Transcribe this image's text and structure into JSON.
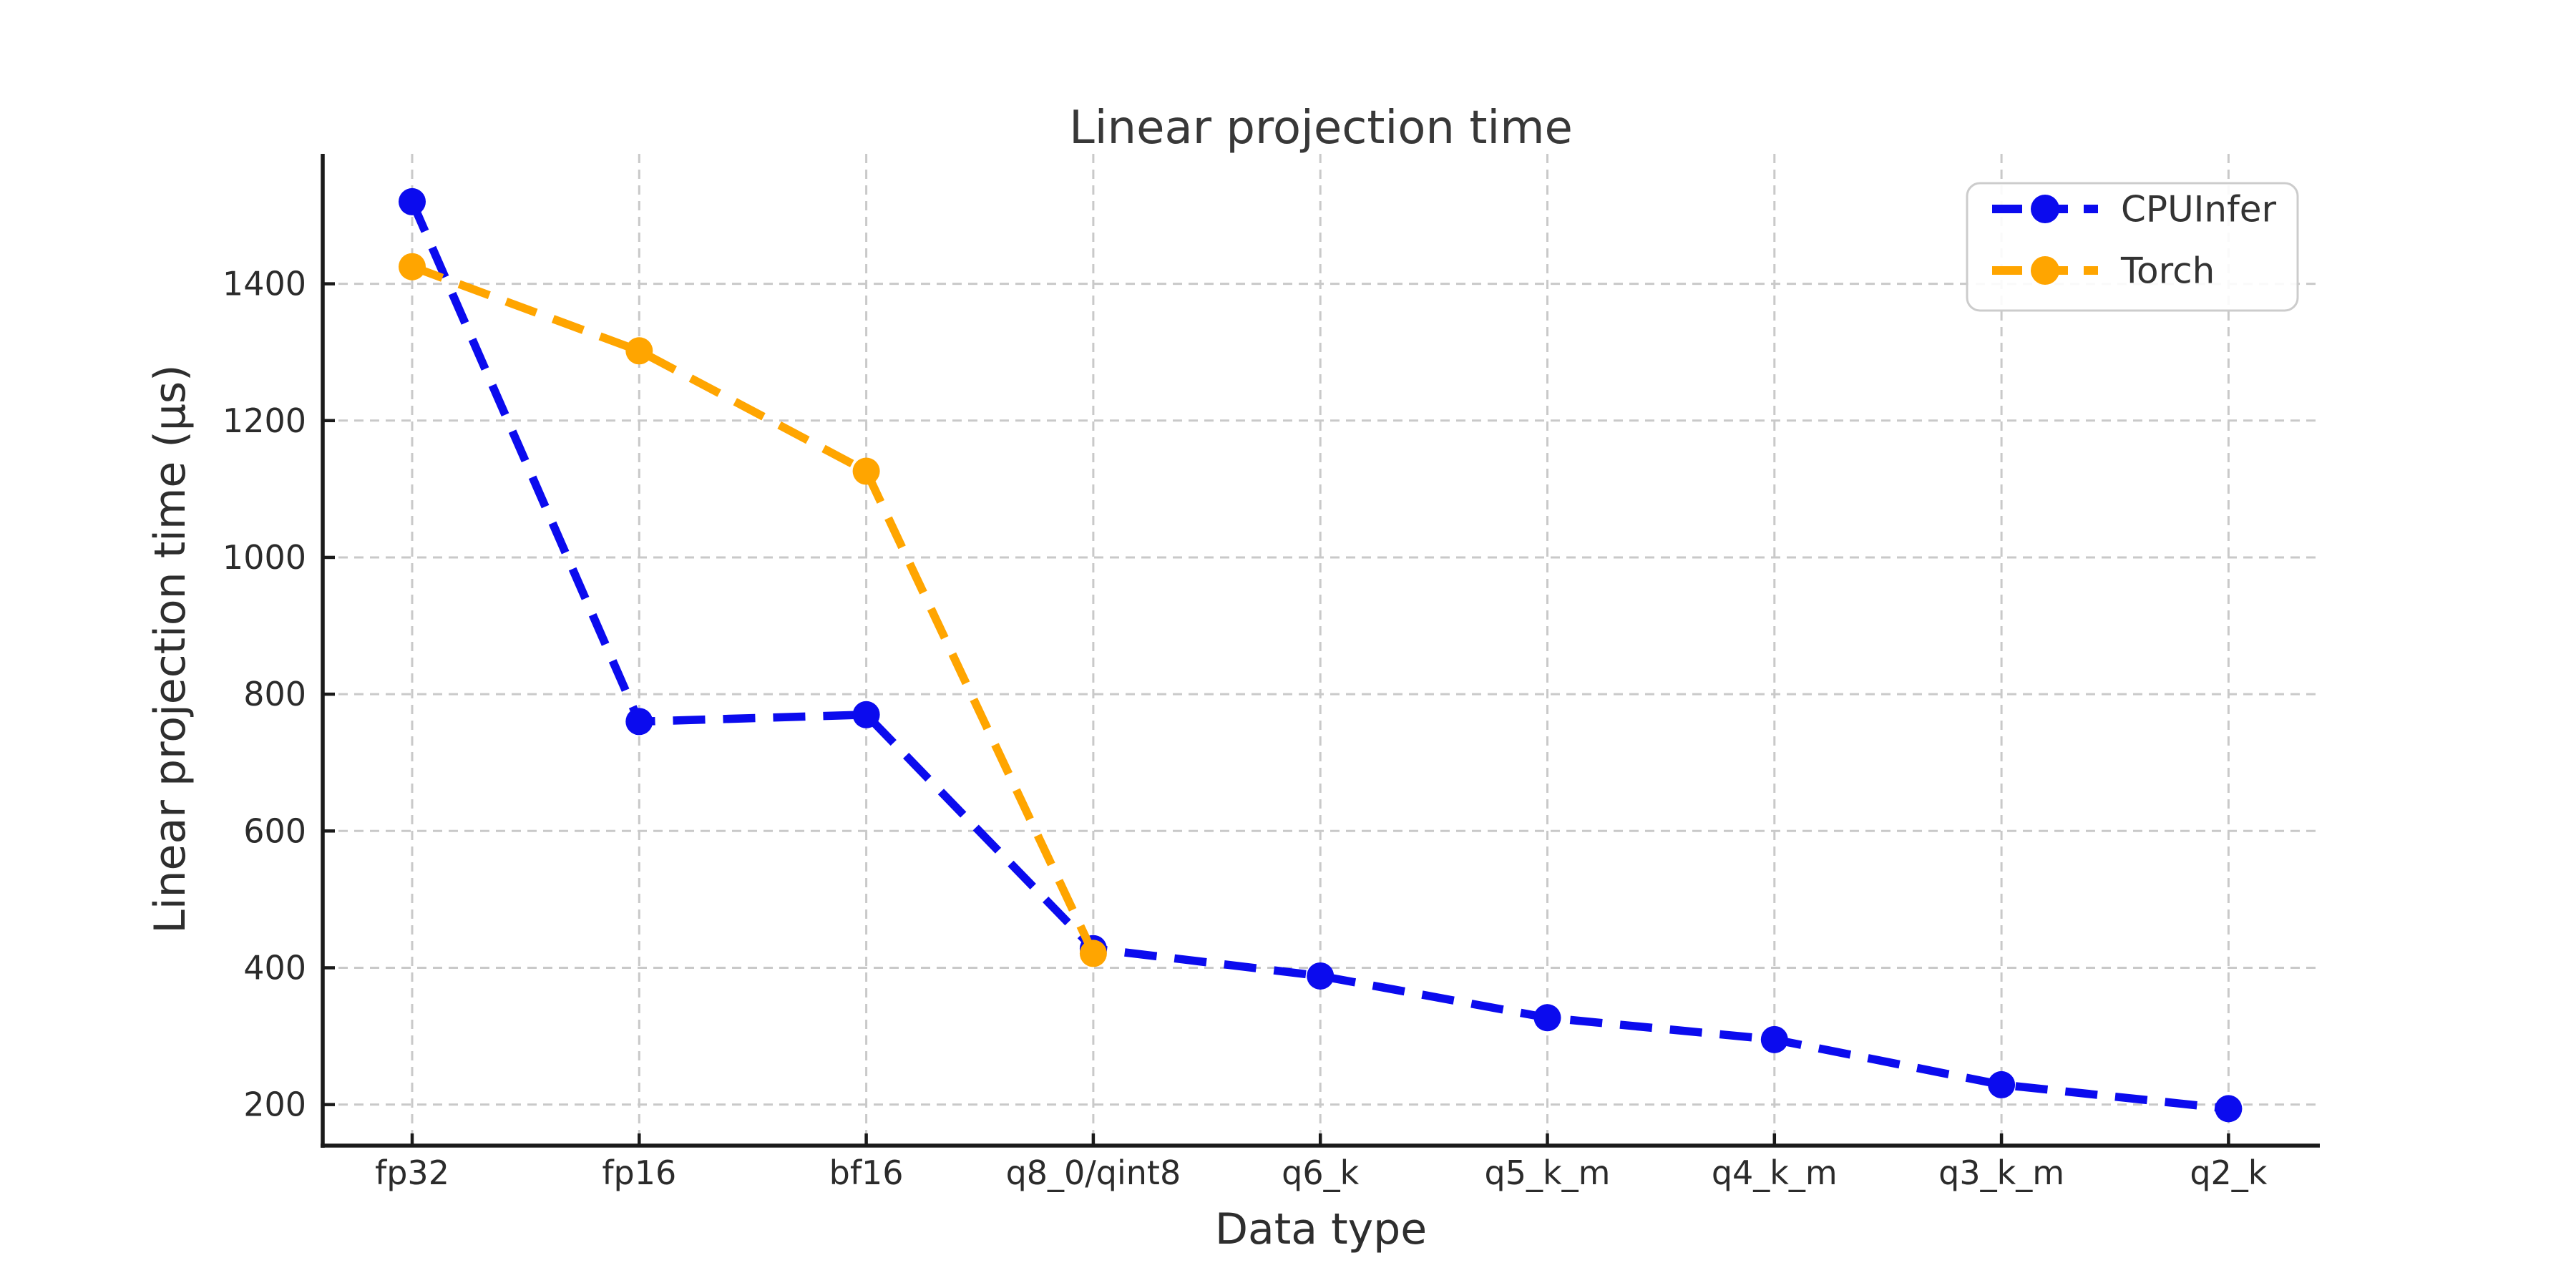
{
  "page": {
    "background_color": "#ffffff"
  },
  "chart_data": {
    "type": "line",
    "title": "Linear projection time",
    "xlabel": "Data type",
    "ylabel": "Linear projection time (µs)",
    "categories": [
      "fp32",
      "fp16",
      "bf16",
      "q8_0/qint8",
      "q6_k",
      "q5_k_m",
      "q4_k_m",
      "q3_k_m",
      "q2_k"
    ],
    "series": [
      {
        "name": "CPUInfer",
        "color": "#0b0bee",
        "line_style": "dashed",
        "marker": "circle",
        "values": [
          1520,
          760,
          770,
          428,
          388,
          327,
          295,
          229,
          194
        ]
      },
      {
        "name": "Torch",
        "color": "#ffa500",
        "line_style": "dashed",
        "marker": "circle",
        "values": [
          1425,
          1302,
          1126,
          421,
          null,
          null,
          null,
          null,
          null
        ]
      }
    ],
    "yticks": [
      200,
      400,
      600,
      800,
      1000,
      1200,
      1400
    ],
    "ylim": [
      140,
      1590
    ],
    "grid": {
      "show": true,
      "style": "dashed",
      "color": "#c9c9c9"
    },
    "legend": {
      "position": "upper-right"
    },
    "axis_color": "#1a1a1a"
  }
}
